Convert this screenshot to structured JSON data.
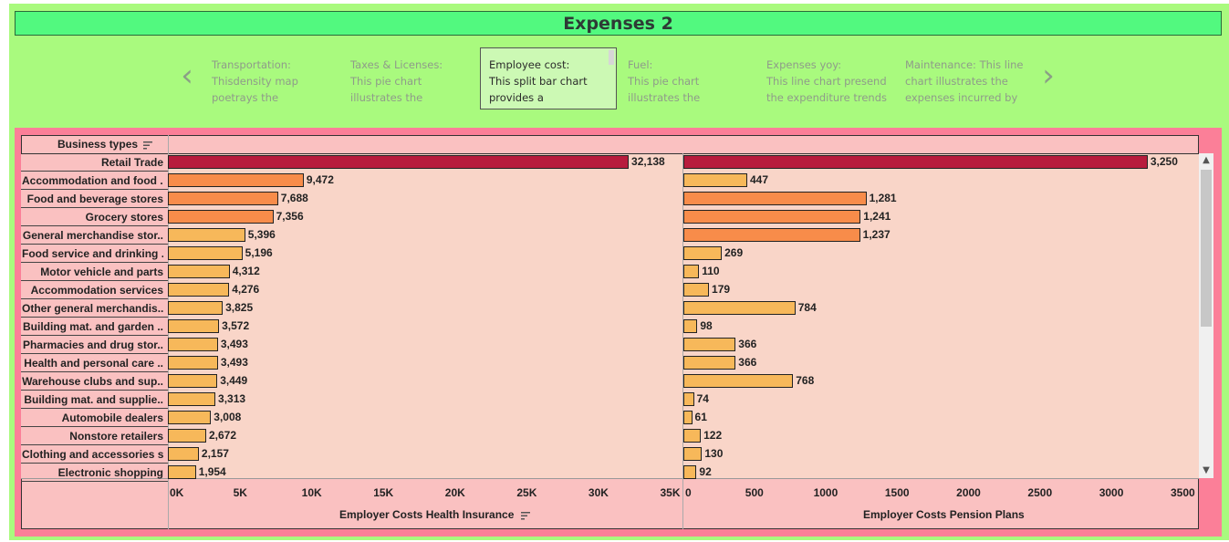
{
  "title": "Expenses 2",
  "carousel": {
    "prev_icon": "‹",
    "next_icon": "›",
    "cards": [
      {
        "line1": "Transportation:",
        "line2": "Thisdensity map",
        "line3": "poetrays the"
      },
      {
        "line1": "Taxes & Licenses:",
        "line2": "This pie chart",
        "line3": "illustrates the"
      },
      {
        "line1": "Employee cost:",
        "line2": "This split bar chart",
        "line3": "provides a expenditure"
      },
      {
        "line1": "Fuel:",
        "line2": "This pie chart",
        "line3": "illustrates the"
      },
      {
        "line1": "Expenses yoy:",
        "line2": "This line chart presend",
        "line3": "the expenditure trends"
      },
      {
        "line1": "Maintenance: This line",
        "line2": "chart illustrates the",
        "line3": "expenses incurred by"
      }
    ]
  },
  "colors": {
    "dark": "#b71c3d",
    "orange": "#f88c4a",
    "light": "#f7b85a"
  },
  "chart_data": {
    "type": "bar",
    "row_header": "Business types",
    "categories": [
      "Retail Trade",
      "Accommodation and food ..",
      "Food and beverage stores",
      "Grocery stores",
      "General merchandise stor..",
      "Food service and drinking ..",
      "Motor vehicle and parts",
      "Accommodation services",
      "Other general merchandis..",
      "Building mat. and garden ..",
      "Pharmacies and drug stor..",
      "Health and personal care ..",
      "Warehouse clubs and sup..",
      "Building mat. and supplie..",
      "Automobile dealers",
      "Nonstore retailers",
      "Clothing and accessories s..",
      "Electronic shopping"
    ],
    "series": [
      {
        "name": "Employer Costs Health Insurance",
        "values": [
          32138,
          9472,
          7688,
          7356,
          5396,
          5196,
          4312,
          4276,
          3825,
          3572,
          3493,
          3493,
          3449,
          3313,
          3008,
          2672,
          2157,
          1954
        ],
        "labels": [
          "32,138",
          "9,472",
          "7,688",
          "7,356",
          "5,396",
          "5,196",
          "4,312",
          "4,276",
          "3,825",
          "3,572",
          "3,493",
          "3,493",
          "3,449",
          "3,313",
          "3,008",
          "2,672",
          "2,157",
          "1,954"
        ],
        "xlim": [
          0,
          35000
        ],
        "ticks": [
          0,
          5000,
          10000,
          15000,
          20000,
          25000,
          30000,
          35000
        ],
        "tick_labels": [
          "0K",
          "5K",
          "10K",
          "15K",
          "20K",
          "25K",
          "30K",
          "35K"
        ]
      },
      {
        "name": "Employer Costs Pension Plans",
        "values": [
          3250,
          447,
          1281,
          1241,
          1237,
          269,
          110,
          179,
          784,
          98,
          366,
          366,
          768,
          74,
          61,
          122,
          130,
          92
        ],
        "labels": [
          "3,250",
          "447",
          "1,281",
          "1,241",
          "1,237",
          "269",
          "110",
          "179",
          "784",
          "98",
          "366",
          "366",
          "768",
          "74",
          "61",
          "122",
          "130",
          "92"
        ],
        "xlim": [
          0,
          3500
        ],
        "ticks": [
          0,
          500,
          1000,
          1500,
          2000,
          2500,
          3000,
          3500
        ],
        "tick_labels": [
          "0",
          "500",
          "1000",
          "1500",
          "2000",
          "2500",
          "3000",
          "3500"
        ]
      }
    ]
  }
}
